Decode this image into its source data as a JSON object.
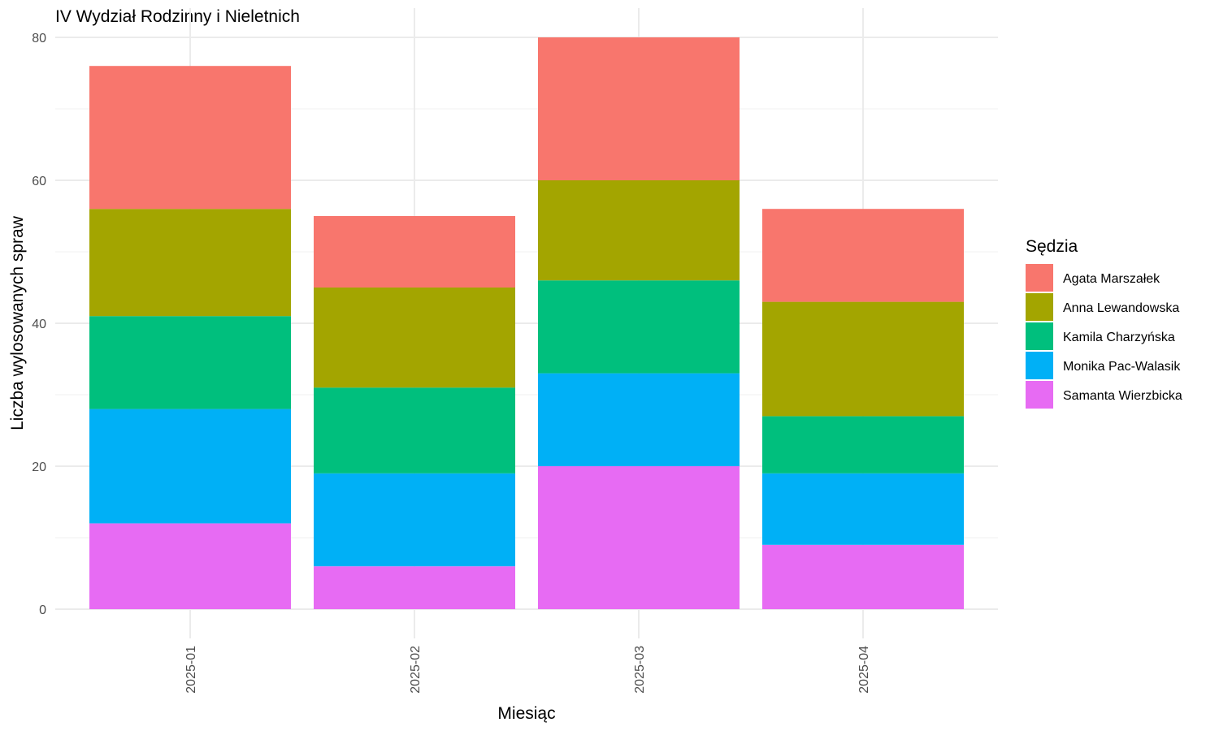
{
  "chart_data": {
    "type": "bar",
    "stacked": true,
    "title": "IV Wydział Rodzinny i Nieletnich",
    "xlabel": "Miesiąc",
    "ylabel": "Liczba wylosowanych spraw",
    "ylim": [
      0,
      80
    ],
    "yticks": [
      0,
      20,
      40,
      60,
      80
    ],
    "grid": true,
    "legend_title": "Sędzia",
    "legend_position": "right",
    "categories": [
      "2025-01",
      "2025-02",
      "2025-03",
      "2025-04"
    ],
    "series": [
      {
        "name": "Samanta Wierzbicka",
        "color": "#E76BF3",
        "values": [
          12,
          6,
          20,
          9
        ]
      },
      {
        "name": "Monika Pac-Walasik",
        "color": "#00B0F6",
        "values": [
          16,
          13,
          13,
          10
        ]
      },
      {
        "name": "Kamila Charzyńska",
        "color": "#00BF7D",
        "values": [
          13,
          12,
          13,
          8
        ]
      },
      {
        "name": "Anna Lewandowska",
        "color": "#A3A500",
        "values": [
          15,
          14,
          14,
          16
        ]
      },
      {
        "name": "Agata Marszałek",
        "color": "#F8766D",
        "values": [
          20,
          10,
          20,
          13
        ]
      }
    ],
    "legend_order": [
      "Agata Marszałek",
      "Anna Lewandowska",
      "Kamila Charzyńska",
      "Monika Pac-Walasik",
      "Samanta Wierzbicka"
    ]
  }
}
